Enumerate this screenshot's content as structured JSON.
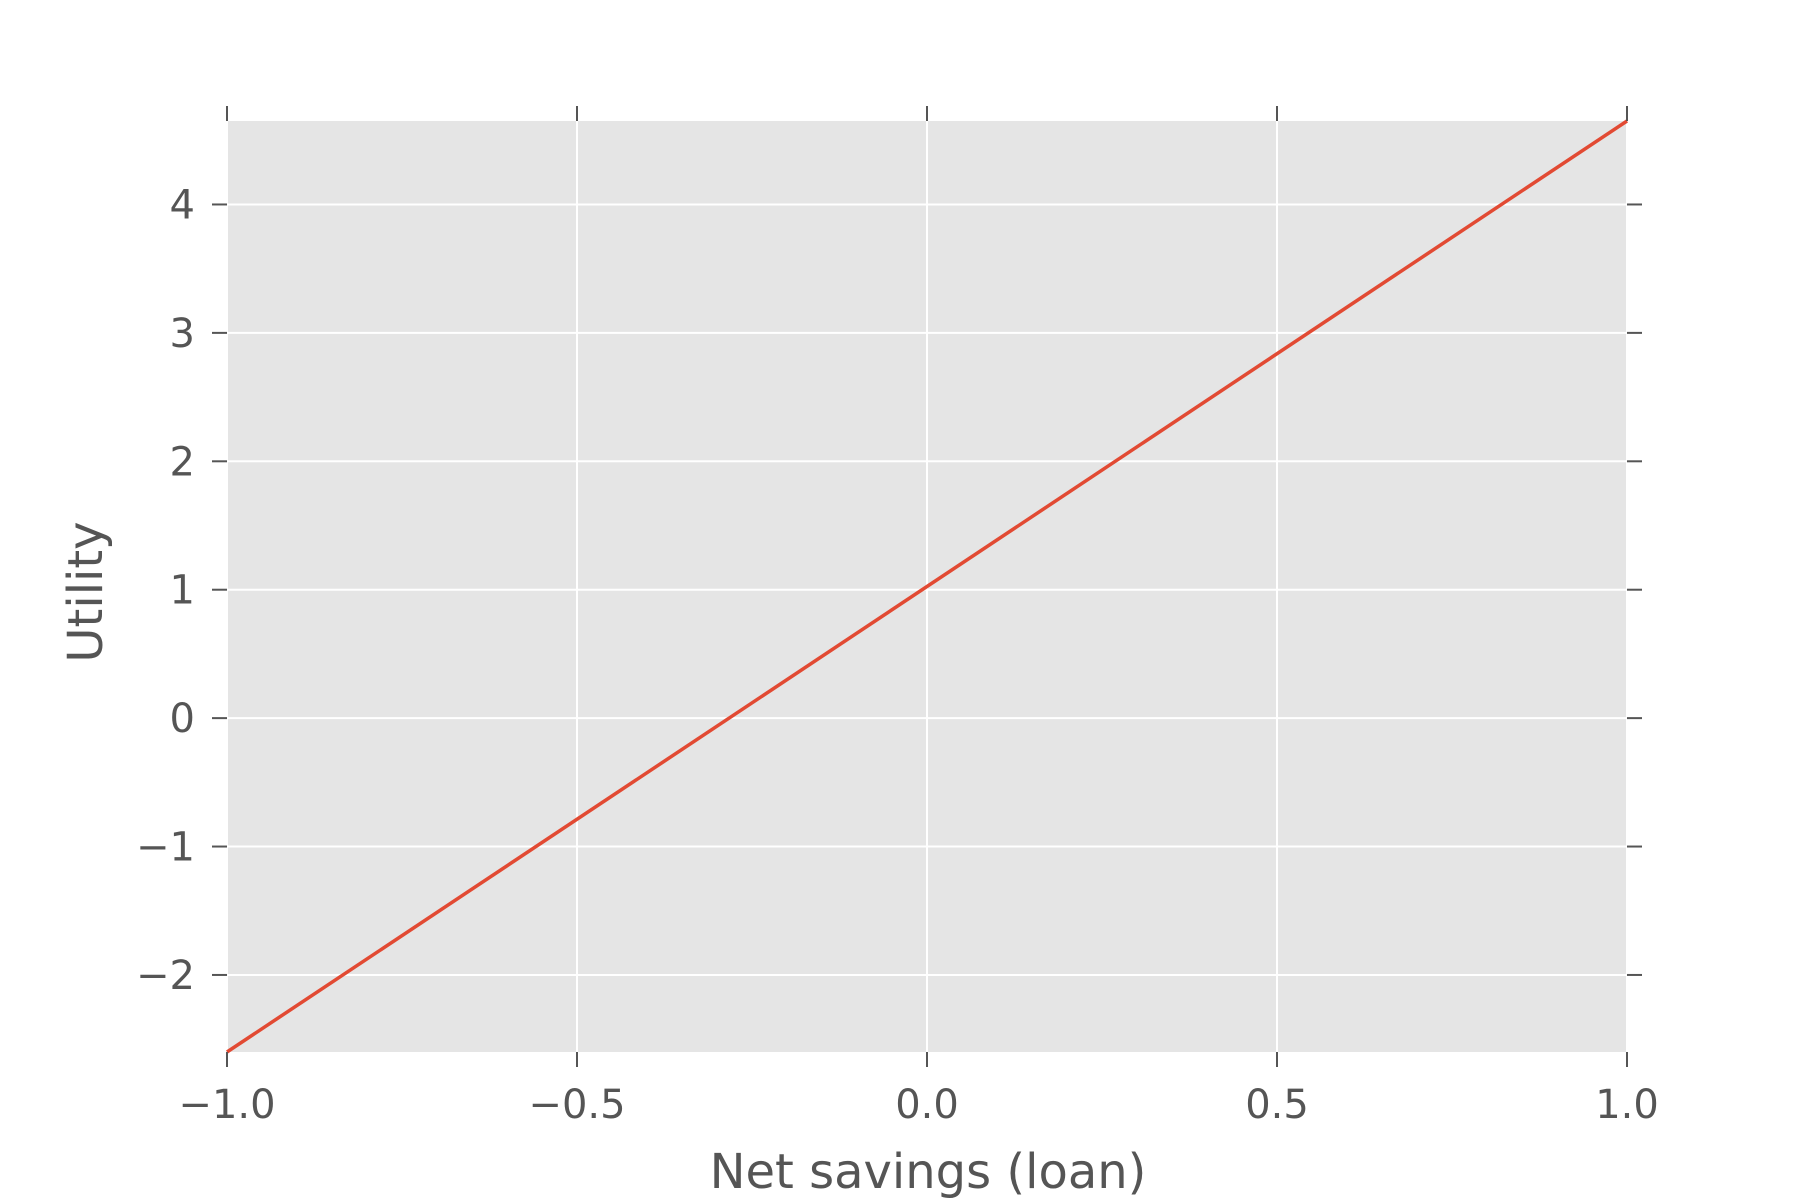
{
  "chart_data": {
    "type": "line",
    "title": "",
    "xlabel": "Net savings (loan)",
    "ylabel": "Utility",
    "xlim": [
      -1.0,
      1.0
    ],
    "ylim": [
      -2.6,
      4.65
    ],
    "xticks": [
      -1.0,
      -0.5,
      0.0,
      0.5,
      1.0
    ],
    "xtick_labels": [
      "−1.0",
      "−0.5",
      "0.0",
      "0.5",
      "1.0"
    ],
    "yticks": [
      -2,
      -1,
      0,
      1,
      2,
      3,
      4
    ],
    "ytick_labels": [
      "−2",
      "−1",
      "0",
      "1",
      "2",
      "3",
      "4"
    ],
    "grid": true,
    "background_color": "#e5e5e5",
    "grid_color": "#ffffff",
    "series": [
      {
        "color": "#e24a33",
        "x": [
          -1.0,
          1.0
        ],
        "y": [
          -2.6,
          4.65
        ]
      }
    ]
  }
}
